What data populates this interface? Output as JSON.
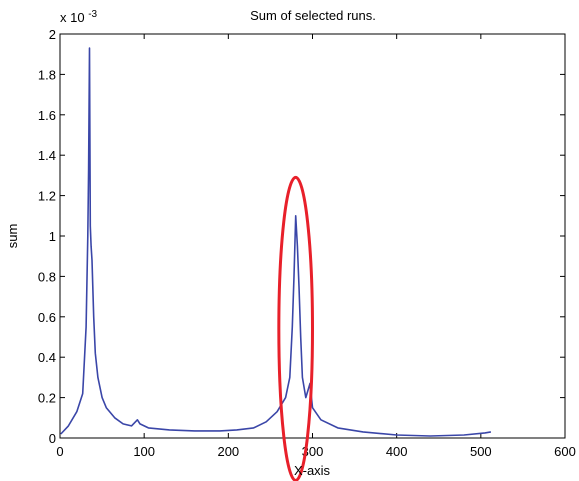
{
  "chart_data": {
    "type": "line",
    "title": "Sum of selected runs.",
    "xlabel": "X-axis",
    "ylabel": "sum",
    "y_multiplier_label": "x 10",
    "y_multiplier_exponent": "-3",
    "xlim": [
      0,
      600
    ],
    "ylim": [
      0,
      2
    ],
    "x_ticks": [
      0,
      100,
      200,
      300,
      400,
      500,
      600
    ],
    "y_ticks": [
      0,
      0.2,
      0.4,
      0.6,
      0.8,
      1,
      1.2,
      1.4,
      1.6,
      1.8,
      2
    ],
    "y_tick_labels": [
      "0",
      "0.2",
      "0.4",
      "0.6",
      "0.8",
      "1",
      "1.2",
      "1.4",
      "1.6",
      "1.8",
      "2"
    ],
    "grid": false,
    "legend": false,
    "series": [
      {
        "color": "#3a46a8",
        "x_range": [
          1,
          512
        ],
        "peaks": [
          {
            "x": 35,
            "y": 1.93
          },
          {
            "x": 280,
            "y": 1.1
          }
        ],
        "points": [
          [
            1,
            0.02
          ],
          [
            10,
            0.06
          ],
          [
            20,
            0.13
          ],
          [
            27,
            0.22
          ],
          [
            31,
            0.55
          ],
          [
            33,
            1.0
          ],
          [
            34,
            1.33
          ],
          [
            35,
            1.93
          ],
          [
            36,
            1.05
          ],
          [
            37,
            0.95
          ],
          [
            38,
            0.88
          ],
          [
            40,
            0.6
          ],
          [
            42,
            0.42
          ],
          [
            45,
            0.3
          ],
          [
            50,
            0.2
          ],
          [
            55,
            0.15
          ],
          [
            65,
            0.1
          ],
          [
            75,
            0.07
          ],
          [
            85,
            0.06
          ],
          [
            92,
            0.09
          ],
          [
            95,
            0.07
          ],
          [
            105,
            0.05
          ],
          [
            130,
            0.04
          ],
          [
            160,
            0.035
          ],
          [
            190,
            0.035
          ],
          [
            210,
            0.04
          ],
          [
            230,
            0.05
          ],
          [
            245,
            0.08
          ],
          [
            258,
            0.13
          ],
          [
            268,
            0.2
          ],
          [
            273,
            0.3
          ],
          [
            276,
            0.55
          ],
          [
            278,
            0.8
          ],
          [
            280,
            1.1
          ],
          [
            282,
            0.95
          ],
          [
            284,
            0.75
          ],
          [
            286,
            0.5
          ],
          [
            288,
            0.3
          ],
          [
            292,
            0.2
          ],
          [
            297,
            0.27
          ],
          [
            300,
            0.15
          ],
          [
            310,
            0.09
          ],
          [
            330,
            0.05
          ],
          [
            360,
            0.03
          ],
          [
            400,
            0.015
          ],
          [
            440,
            0.01
          ],
          [
            480,
            0.015
          ],
          [
            505,
            0.025
          ],
          [
            512,
            0.03
          ]
        ]
      }
    ],
    "annotations": [
      {
        "type": "ellipse",
        "color": "#e8202a",
        "cx": 280,
        "cy": 0.54,
        "rx": 20,
        "ry": 0.75
      }
    ]
  }
}
